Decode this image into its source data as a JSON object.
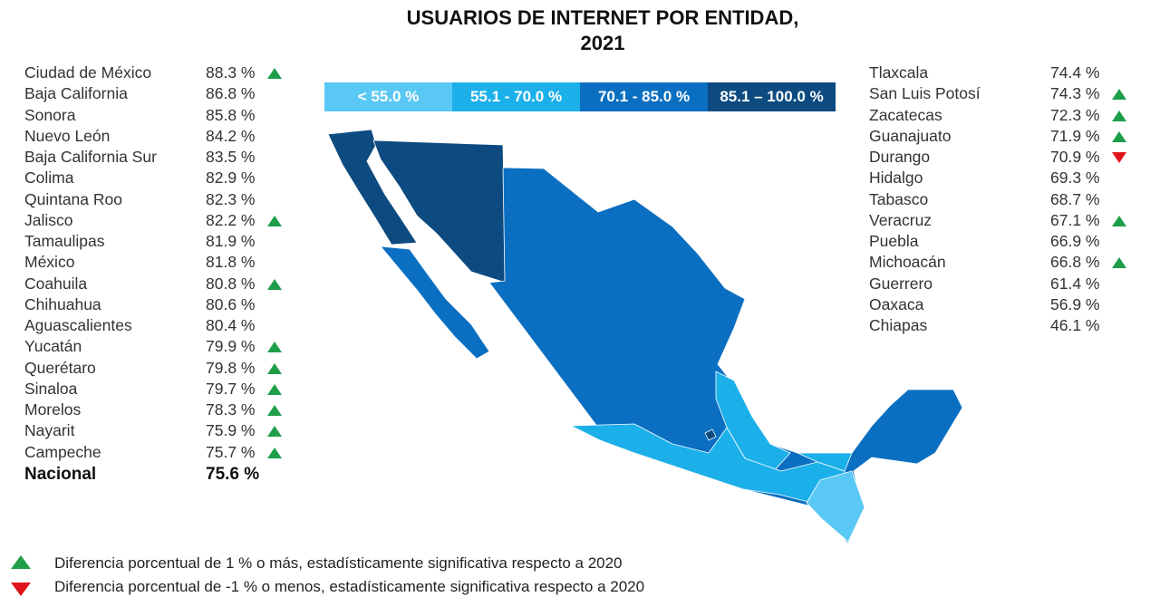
{
  "title": {
    "line1": "USUARIOS DE INTERNET POR ENTIDAD,",
    "line2": "2021"
  },
  "legend": [
    {
      "label": "< 55.0 %",
      "color": "#5ac8f5"
    },
    {
      "label": "55.1 - 70.0 %",
      "color": "#1cb0ea"
    },
    {
      "label": "70.1 - 85.0 %",
      "color": "#0b6fc1"
    },
    {
      "label": "85.1 – 100.0 %",
      "color": "#0c4a80"
    }
  ],
  "left_list": [
    {
      "name": "Ciudad de México",
      "value": "88.3 %",
      "trend": "up"
    },
    {
      "name": "Baja California",
      "value": "86.8 %",
      "trend": ""
    },
    {
      "name": "Sonora",
      "value": "85.8 %",
      "trend": ""
    },
    {
      "name": "Nuevo León",
      "value": "84.2 %",
      "trend": ""
    },
    {
      "name": "Baja California Sur",
      "value": "83.5 %",
      "trend": ""
    },
    {
      "name": "Colima",
      "value": "82.9 %",
      "trend": ""
    },
    {
      "name": "Quintana Roo",
      "value": "82.3 %",
      "trend": ""
    },
    {
      "name": "Jalisco",
      "value": "82.2  %",
      "trend": "up"
    },
    {
      "name": "Tamaulipas",
      "value": "81.9 %",
      "trend": ""
    },
    {
      "name": "México",
      "value": "81.8 %",
      "trend": ""
    },
    {
      "name": "Coahuila",
      "value": "80.8 %",
      "trend": "up"
    },
    {
      "name": "Chihuahua",
      "value": "80.6 %",
      "trend": ""
    },
    {
      "name": "Aguascalientes",
      "value": "80.4 %",
      "trend": ""
    },
    {
      "name": "Yucatán",
      "value": "79.9 %",
      "trend": "up"
    },
    {
      "name": "Querétaro",
      "value": "79.8 %",
      "trend": "up"
    },
    {
      "name": "Sinaloa",
      "value": "79.7 %",
      "trend": "up"
    },
    {
      "name": "Morelos",
      "value": "78.3 %",
      "trend": "up"
    },
    {
      "name": "Nayarit",
      "value": "75.9 %",
      "trend": "up"
    },
    {
      "name": "Campeche",
      "value": "75.7 %",
      "trend": "up"
    }
  ],
  "national": {
    "name": "Nacional",
    "value": "75.6 %"
  },
  "right_list": [
    {
      "name": "Tlaxcala",
      "value": "74.4 %",
      "trend": ""
    },
    {
      "name": "San Luis Potosí",
      "value": "74.3 %",
      "trend": "up"
    },
    {
      "name": "Zacatecas",
      "value": "72.3 %",
      "trend": "up"
    },
    {
      "name": "Guanajuato",
      "value": "71.9 %",
      "trend": "up"
    },
    {
      "name": "Durango",
      "value": "70.9 %",
      "trend": "down"
    },
    {
      "name": "Hidalgo",
      "value": "69.3 %",
      "trend": ""
    },
    {
      "name": "Tabasco",
      "value": "68.7 %",
      "trend": ""
    },
    {
      "name": "Veracruz",
      "value": "67.1 %",
      "trend": "up"
    },
    {
      "name": "Puebla",
      "value": "66.9 %",
      "trend": ""
    },
    {
      "name": "Michoacán",
      "value": "66.8 %",
      "trend": "up"
    },
    {
      "name": "Guerrero",
      "value": "61.4 %",
      "trend": ""
    },
    {
      "name": "Oaxaca",
      "value": "56.9 %",
      "trend": ""
    },
    {
      "name": "Chiapas",
      "value": "46.1 %",
      "trend": ""
    }
  ],
  "footnotes": {
    "up": "Diferencia porcentual de 1 % o más, estadísticamente significativa respecto a 2020",
    "down": "Diferencia porcentual de -1 % o menos, estadísticamente significativa respecto a 2020",
    "up_color": "#1f9e4a",
    "down_color": "#e0151b"
  }
}
